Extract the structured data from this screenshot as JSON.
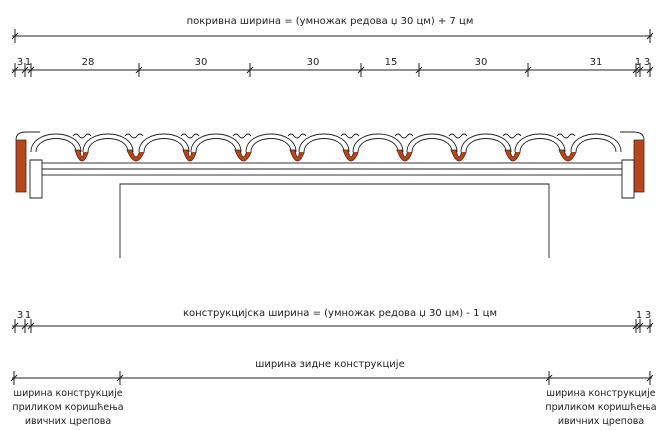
{
  "labels": {
    "cover_width": "покривна ширина = (умножак редова џ 30 цм) + 7 цм",
    "construction_width": "конструкцијска ширина = (умножак редова џ 30 цм) - 1 цм",
    "wall_width": "ширина зидне конструкције",
    "edge_note_line1": "ширина конструкције",
    "edge_note_line2": "приликом коришћења",
    "edge_note_line3": "ивичних црепова"
  },
  "top_segments": [
    "3",
    "1",
    "28",
    "30",
    "30",
    "15",
    "30",
    "31",
    "1",
    "3"
  ],
  "construction_left": [
    "3",
    "1"
  ],
  "construction_right": [
    "1",
    "3"
  ],
  "colors": {
    "line": "#222222",
    "clay": "#b5471f"
  }
}
